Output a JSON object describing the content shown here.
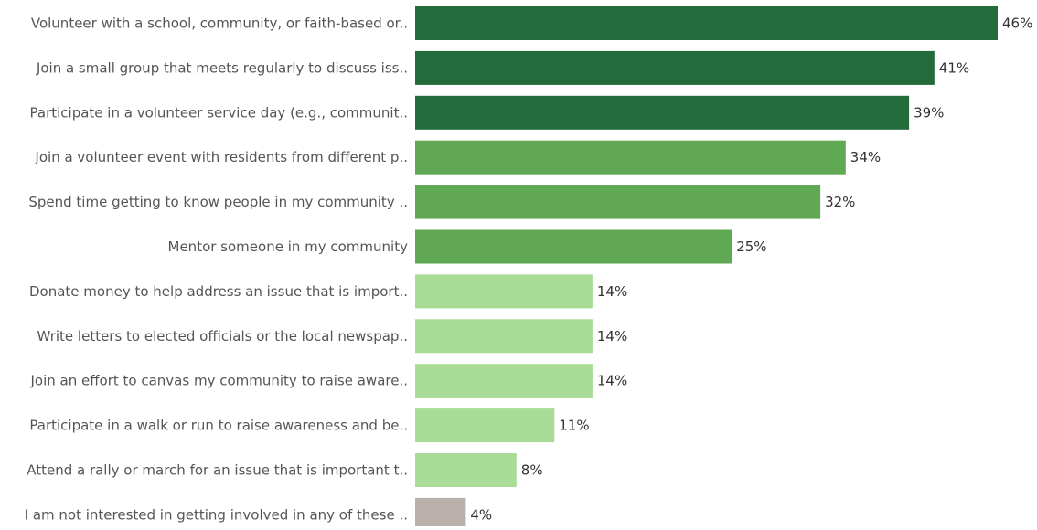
{
  "chart_data": {
    "type": "bar",
    "orientation": "horizontal",
    "categories": [
      "Volunteer with a school, community, or faith-based or..",
      "Join a small group that meets regularly to discuss iss..",
      "Participate in a volunteer service day (e.g., communit..",
      "Join a volunteer event with residents from different p..",
      "Spend time getting to know people in my community ..",
      "Mentor someone in my community",
      "Donate money to help address an issue that is import..",
      "Write letters to elected officials or the local newspap..",
      "Join an effort to canvas my community to raise aware..",
      "Participate in a walk or run to raise awareness and be..",
      "Attend a rally or march for an issue that is important t..",
      "I am not interested in getting involved in any of these .."
    ],
    "values": [
      46,
      41,
      39,
      34,
      32,
      25,
      14,
      14,
      14,
      11,
      8,
      4
    ],
    "value_labels": [
      "46%",
      "41%",
      "39%",
      "34%",
      "32%",
      "25%",
      "14%",
      "14%",
      "14%",
      "11%",
      "8%",
      "4%"
    ],
    "color_tiers": [
      "dark",
      "dark",
      "dark",
      "medium",
      "medium",
      "medium",
      "light",
      "light",
      "light",
      "light",
      "light",
      "gray"
    ],
    "colors": {
      "dark": "#236b3b",
      "medium": "#60a854",
      "light": "#a8dc97",
      "gray": "#bab0ac"
    },
    "title": "",
    "xlabel": "",
    "ylabel": "",
    "xlim": [
      0,
      46
    ],
    "grid": false,
    "legend": "none"
  }
}
